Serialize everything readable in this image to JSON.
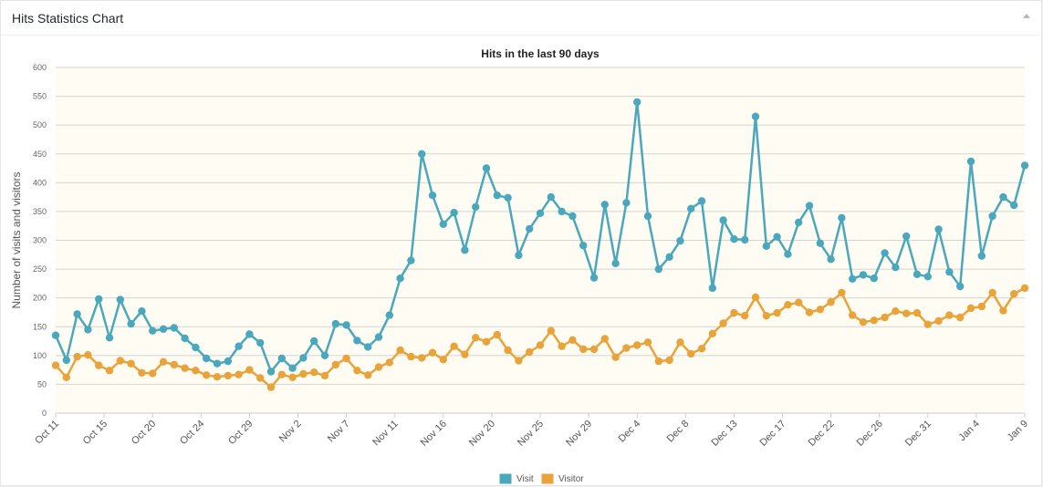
{
  "panel": {
    "title": "Hits Statistics Chart"
  },
  "chart_data": {
    "type": "line",
    "title": "Hits in the last 90 days",
    "ylabel": "Number of visits and visitors",
    "ylim": [
      0,
      600
    ],
    "yticks": [
      0,
      50,
      100,
      150,
      200,
      250,
      300,
      350,
      400,
      450,
      500,
      550,
      600
    ],
    "grid": true,
    "legend_placement": "bottom-center",
    "x_tick_labels": [
      "Oct 11",
      "Oct 15",
      "Oct 20",
      "Oct 24",
      "Oct 29",
      "Nov 2",
      "Nov 7",
      "Nov 11",
      "Nov 16",
      "Nov 20",
      "Nov 25",
      "Nov 29",
      "Dec 4",
      "Dec 8",
      "Dec 13",
      "Dec 17",
      "Dec 22",
      "Dec 26",
      "Dec 31",
      "Jan 4",
      "Jan 9"
    ],
    "series": [
      {
        "name": "Visit",
        "color": "#4aa8bd",
        "values": [
          135,
          92,
          172,
          145,
          198,
          131,
          197,
          155,
          177,
          143,
          146,
          148,
          130,
          114,
          95,
          86,
          90,
          116,
          137,
          122,
          72,
          95,
          78,
          96,
          125,
          100,
          155,
          153,
          126,
          115,
          132,
          170,
          234,
          265,
          450,
          378,
          328,
          348,
          283,
          358,
          425,
          378,
          374,
          274,
          320,
          347,
          375,
          350,
          342,
          291,
          235,
          362,
          260,
          365,
          540,
          342,
          250,
          271,
          299,
          355,
          368,
          217,
          335,
          302,
          301,
          515,
          290,
          306,
          276,
          331,
          360,
          295,
          267,
          339,
          233,
          240,
          234,
          278,
          253,
          307,
          241,
          237,
          319,
          245,
          220,
          437,
          273,
          342,
          375,
          361,
          430
        ]
      },
      {
        "name": "Visitor",
        "color": "#e8a33a",
        "values": [
          83,
          62,
          98,
          101,
          83,
          74,
          91,
          86,
          70,
          69,
          89,
          84,
          78,
          74,
          66,
          63,
          65,
          67,
          75,
          61,
          45,
          67,
          62,
          68,
          71,
          65,
          84,
          95,
          74,
          66,
          80,
          88,
          109,
          98,
          96,
          105,
          93,
          116,
          102,
          131,
          124,
          136,
          109,
          91,
          106,
          118,
          143,
          116,
          127,
          111,
          111,
          129,
          97,
          113,
          118,
          123,
          90,
          92,
          123,
          103,
          112,
          138,
          156,
          174,
          169,
          201,
          169,
          174,
          188,
          192,
          175,
          180,
          193,
          209,
          170,
          158,
          161,
          166,
          177,
          173,
          174,
          154,
          160,
          170,
          166,
          182,
          185,
          209,
          178,
          207,
          217
        ]
      }
    ]
  }
}
